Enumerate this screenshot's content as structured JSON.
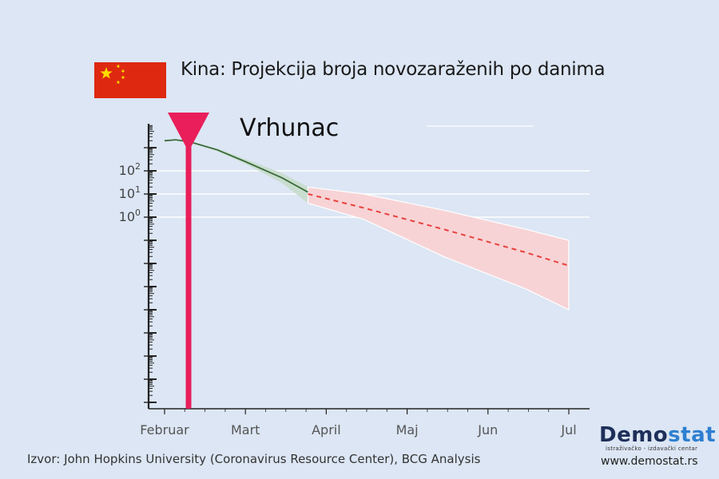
{
  "header": {
    "title": "Kina: Projekcija broja novozaraženih po danima"
  },
  "annotation": {
    "peak_label": "Vrhunac"
  },
  "footer": {
    "source": "Izvor: John Hopkins University (Coronavirus Resource Center), BCG Analysis"
  },
  "brand": {
    "name_part1": "Demo",
    "name_part2": "stat",
    "tagline": "istraživačko - izdavački centar",
    "url": "www.demostat.rs"
  },
  "colors": {
    "background": "#dce6f4",
    "observed_line": "#3a6b3a",
    "observed_band": "#c7dccb",
    "projection_line": "#e8413c",
    "projection_band": "#f7d3d6",
    "peak_marker": "#e91e5a",
    "flag_red": "#de2910",
    "flag_yellow": "#ffde00",
    "brand_dark": "#1e2f5a",
    "brand_accent": "#2e7fd0"
  },
  "chart_data": {
    "type": "line",
    "yscale": "log",
    "x_ticks": [
      "Februar",
      "Mart",
      "April",
      "Maj",
      "Jun",
      "Jul"
    ],
    "y_ticks": [
      "10^0",
      "10^1",
      "10^2"
    ],
    "grid": "horizontal at labeled decades",
    "peak_date": "Februar, ~5 days after start",
    "series": [
      {
        "kind": "observed",
        "x": [
          "2020-02-01",
          "2020-02-05",
          "2020-02-10",
          "2020-02-20",
          "2020-03-01",
          "2020-03-15",
          "2020-03-25"
        ],
        "y": [
          2000,
          2200,
          1800,
          800,
          250,
          50,
          12
        ],
        "band_low": [
          2000,
          2100,
          1700,
          700,
          200,
          30,
          4
        ],
        "band_high": [
          2000,
          2300,
          1900,
          900,
          320,
          80,
          20
        ]
      },
      {
        "kind": "projection",
        "x": [
          "2020-03-25",
          "2020-04-15",
          "2020-05-15",
          "2020-06-15",
          "2020-07-01"
        ],
        "y": [
          10,
          2.5,
          0.3,
          0.03,
          0.008
        ],
        "band_low": [
          4,
          0.8,
          0.02,
          0.0008,
          0.0001
        ],
        "band_high": [
          20,
          10,
          2,
          0.3,
          0.1
        ]
      }
    ]
  }
}
